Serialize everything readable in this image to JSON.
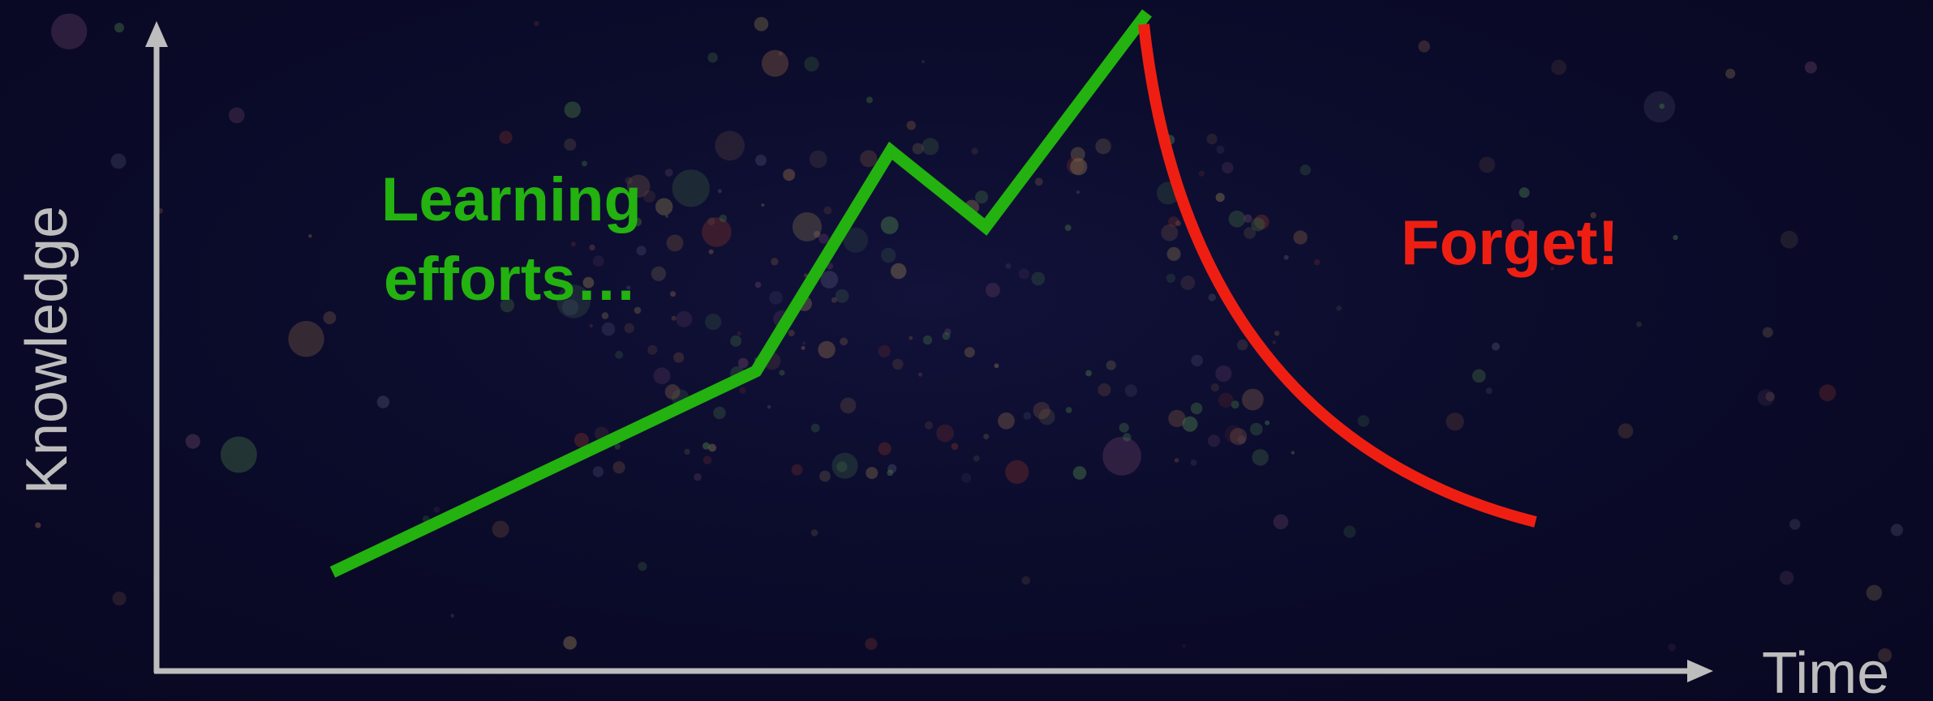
{
  "axes": {
    "y_label": "Knowledge",
    "x_label": "Time",
    "color": "#bdbdbd"
  },
  "annotations": {
    "learning": {
      "line1": "Learning",
      "line2": "efforts…",
      "color": "#23b20f"
    },
    "forget": {
      "text": "Forget!",
      "color": "#ee1f12"
    }
  },
  "curves": {
    "learning_color": "#23b20f",
    "forget_color": "#ee1f12"
  },
  "background": "#0b0b2b"
}
